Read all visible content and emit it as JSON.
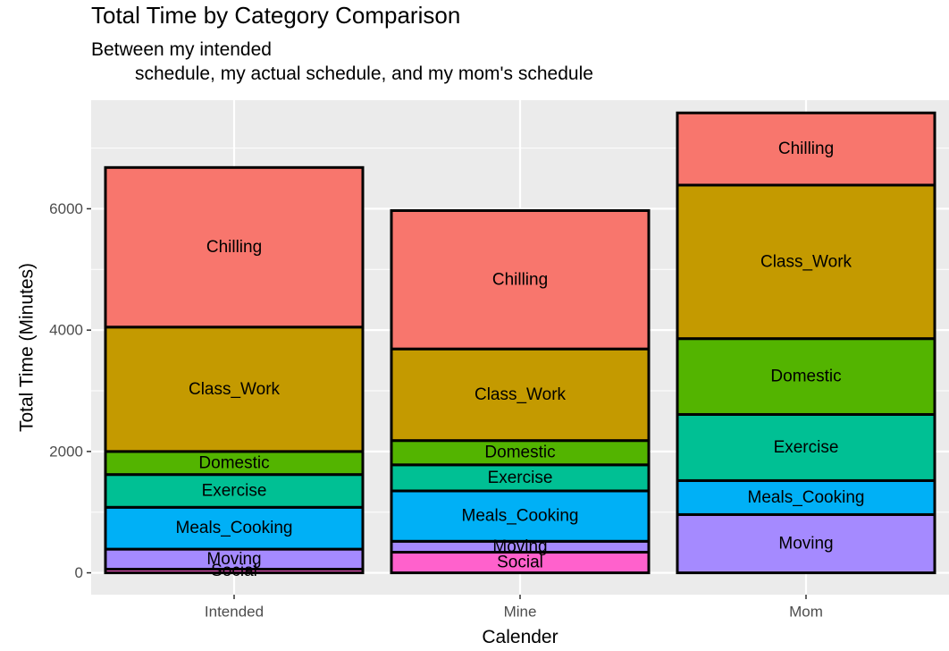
{
  "chart_data": {
    "type": "bar",
    "stacked": true,
    "title": "Total Time by Category Comparison",
    "subtitle_lines": [
      "Between my intended",
      "schedule, my actual schedule, and my mom's schedule"
    ],
    "xlabel": "Calender",
    "ylabel": "Total Time (Minutes)",
    "categories": [
      "Intended",
      "Mine",
      "Mom"
    ],
    "ylim": [
      -360,
      7790
    ],
    "yticks": [
      0,
      2000,
      4000,
      6000
    ],
    "grid": true,
    "legend": "none",
    "series": [
      {
        "name": "Social",
        "color": "#FF61CC",
        "values": [
          60,
          340,
          0
        ]
      },
      {
        "name": "Moving",
        "color": "#A58AFF",
        "values": [
          330,
          180,
          960
        ]
      },
      {
        "name": "Meals_Cooking",
        "color": "#00B0F6",
        "values": [
          690,
          830,
          560
        ]
      },
      {
        "name": "Exercise",
        "color": "#00C094",
        "values": [
          540,
          430,
          1090
        ]
      },
      {
        "name": "Domestic",
        "color": "#53B400",
        "values": [
          380,
          400,
          1250
        ]
      },
      {
        "name": "Class_Work",
        "color": "#C49A00",
        "values": [
          2050,
          1510,
          2530
        ]
      },
      {
        "name": "Chilling",
        "color": "#F8766D",
        "values": [
          2630,
          2280,
          1190
        ]
      }
    ]
  }
}
